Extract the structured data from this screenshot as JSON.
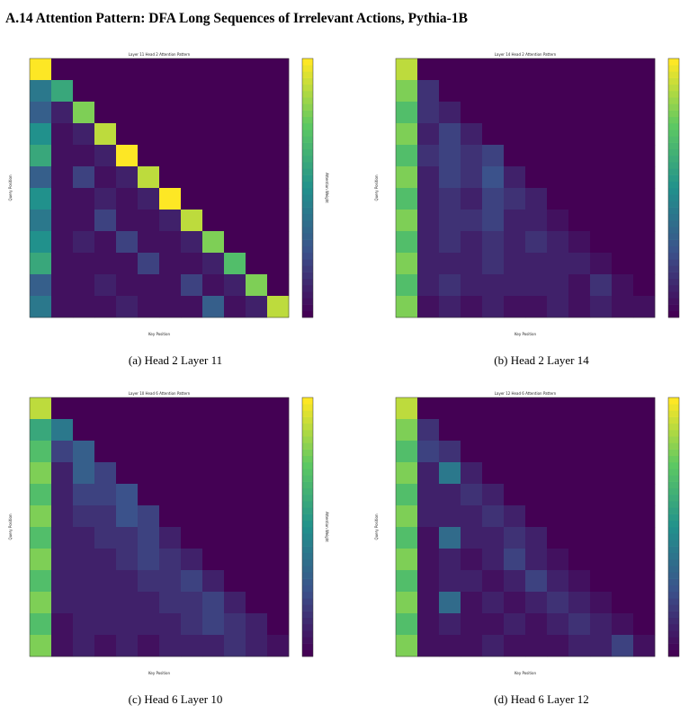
{
  "title": "A.14   Attention Pattern: DFA Long Sequences of Irrelevant Actions, Pythia-1B",
  "chart_data": [
    {
      "type": "heatmap",
      "title": "Layer 11 Head 2 Attention Pattern",
      "xlabel": "Key Position",
      "ylabel": "Query Position",
      "colorbar_label": "Attention Weight",
      "caption": "(a) Head 2 Layer 11",
      "zlim": [
        0,
        1
      ],
      "values": [
        [
          1,
          0,
          0,
          0,
          0,
          0,
          0,
          0,
          0,
          0,
          0,
          0
        ],
        [
          0.4,
          0.6,
          0,
          0,
          0,
          0,
          0,
          0,
          0,
          0,
          0,
          0
        ],
        [
          0.3,
          0.1,
          0.8,
          0,
          0,
          0,
          0,
          0,
          0,
          0,
          0,
          0
        ],
        [
          0.5,
          0.05,
          0.1,
          0.9,
          0,
          0,
          0,
          0,
          0,
          0,
          0,
          0
        ],
        [
          0.6,
          0.05,
          0.05,
          0.1,
          1,
          0,
          0,
          0,
          0,
          0,
          0,
          0
        ],
        [
          0.3,
          0.05,
          0.2,
          0.05,
          0.1,
          0.9,
          0,
          0,
          0,
          0,
          0,
          0
        ],
        [
          0.5,
          0.05,
          0.05,
          0.1,
          0.05,
          0.1,
          1,
          0,
          0,
          0,
          0,
          0
        ],
        [
          0.4,
          0.05,
          0.05,
          0.2,
          0.05,
          0.05,
          0.1,
          0.9,
          0,
          0,
          0,
          0
        ],
        [
          0.5,
          0.05,
          0.1,
          0.05,
          0.2,
          0.05,
          0.05,
          0.1,
          0.8,
          0,
          0,
          0
        ],
        [
          0.6,
          0.05,
          0.05,
          0.05,
          0.05,
          0.2,
          0.05,
          0.05,
          0.1,
          0.7,
          0,
          0
        ],
        [
          0.3,
          0.05,
          0.05,
          0.1,
          0.05,
          0.05,
          0.05,
          0.2,
          0.05,
          0.1,
          0.8,
          0
        ],
        [
          0.4,
          0.05,
          0.05,
          0.05,
          0.1,
          0.05,
          0.05,
          0.05,
          0.3,
          0.05,
          0.1,
          0.9
        ]
      ]
    },
    {
      "type": "heatmap",
      "title": "Layer 14 Head 2 Attention Pattern",
      "xlabel": "Key Position",
      "ylabel": "Query Position",
      "colorbar_label": "Attention Weight",
      "caption": "(b) Head 2 Layer 14",
      "zlim": [
        0,
        1
      ],
      "values": [
        [
          0.9,
          0,
          0,
          0,
          0,
          0,
          0,
          0,
          0,
          0,
          0,
          0
        ],
        [
          0.8,
          0.15,
          0,
          0,
          0,
          0,
          0,
          0,
          0,
          0,
          0,
          0
        ],
        [
          0.7,
          0.15,
          0.1,
          0,
          0,
          0,
          0,
          0,
          0,
          0,
          0,
          0
        ],
        [
          0.8,
          0.1,
          0.2,
          0.1,
          0,
          0,
          0,
          0,
          0,
          0,
          0,
          0
        ],
        [
          0.7,
          0.15,
          0.2,
          0.15,
          0.2,
          0,
          0,
          0,
          0,
          0,
          0,
          0
        ],
        [
          0.8,
          0.1,
          0.2,
          0.15,
          0.25,
          0.1,
          0,
          0,
          0,
          0,
          0,
          0
        ],
        [
          0.7,
          0.1,
          0.15,
          0.1,
          0.2,
          0.15,
          0.1,
          0,
          0,
          0,
          0,
          0
        ],
        [
          0.8,
          0.1,
          0.15,
          0.15,
          0.2,
          0.1,
          0.1,
          0.05,
          0,
          0,
          0,
          0
        ],
        [
          0.7,
          0.1,
          0.15,
          0.1,
          0.15,
          0.1,
          0.15,
          0.1,
          0.05,
          0,
          0,
          0
        ],
        [
          0.8,
          0.1,
          0.1,
          0.1,
          0.15,
          0.1,
          0.1,
          0.1,
          0.1,
          0.05,
          0,
          0
        ],
        [
          0.7,
          0.1,
          0.15,
          0.1,
          0.1,
          0.1,
          0.1,
          0.1,
          0.05,
          0.15,
          0.05,
          0
        ],
        [
          0.8,
          0.05,
          0.1,
          0.05,
          0.1,
          0.05,
          0.05,
          0.1,
          0.05,
          0.1,
          0.05,
          0.05
        ]
      ]
    },
    {
      "type": "heatmap",
      "title": "Layer 10 Head 6 Attention Pattern",
      "xlabel": "Key Position",
      "ylabel": "Query Position",
      "colorbar_label": "Attention Weight",
      "caption": "(c) Head 6 Layer 10",
      "zlim": [
        0,
        1
      ],
      "values": [
        [
          0.9,
          0,
          0,
          0,
          0,
          0,
          0,
          0,
          0,
          0,
          0,
          0
        ],
        [
          0.6,
          0.4,
          0,
          0,
          0,
          0,
          0,
          0,
          0,
          0,
          0,
          0
        ],
        [
          0.7,
          0.2,
          0.3,
          0,
          0,
          0,
          0,
          0,
          0,
          0,
          0,
          0
        ],
        [
          0.8,
          0.1,
          0.3,
          0.2,
          0,
          0,
          0,
          0,
          0,
          0,
          0,
          0
        ],
        [
          0.7,
          0.1,
          0.2,
          0.2,
          0.25,
          0,
          0,
          0,
          0,
          0,
          0,
          0
        ],
        [
          0.8,
          0.1,
          0.15,
          0.15,
          0.25,
          0.2,
          0,
          0,
          0,
          0,
          0,
          0
        ],
        [
          0.7,
          0.1,
          0.1,
          0.15,
          0.15,
          0.2,
          0.1,
          0,
          0,
          0,
          0,
          0
        ],
        [
          0.8,
          0.1,
          0.1,
          0.1,
          0.15,
          0.2,
          0.15,
          0.1,
          0,
          0,
          0,
          0
        ],
        [
          0.7,
          0.1,
          0.1,
          0.1,
          0.1,
          0.15,
          0.15,
          0.2,
          0.1,
          0,
          0,
          0
        ],
        [
          0.8,
          0.1,
          0.1,
          0.1,
          0.1,
          0.1,
          0.15,
          0.15,
          0.2,
          0.1,
          0,
          0
        ],
        [
          0.7,
          0.05,
          0.1,
          0.1,
          0.1,
          0.1,
          0.1,
          0.15,
          0.2,
          0.15,
          0.1,
          0
        ],
        [
          0.8,
          0.05,
          0.1,
          0.05,
          0.1,
          0.05,
          0.1,
          0.1,
          0.1,
          0.15,
          0.1,
          0.05
        ]
      ]
    },
    {
      "type": "heatmap",
      "title": "Layer 12 Head 6 Attention Pattern",
      "xlabel": "Key Position",
      "ylabel": "Query Position",
      "colorbar_label": "Attention Weight",
      "caption": "(d) Head 6 Layer 12",
      "zlim": [
        0,
        1
      ],
      "values": [
        [
          0.9,
          0,
          0,
          0,
          0,
          0,
          0,
          0,
          0,
          0,
          0,
          0
        ],
        [
          0.8,
          0.15,
          0,
          0,
          0,
          0,
          0,
          0,
          0,
          0,
          0,
          0
        ],
        [
          0.7,
          0.2,
          0.15,
          0,
          0,
          0,
          0,
          0,
          0,
          0,
          0,
          0
        ],
        [
          0.8,
          0.1,
          0.4,
          0.1,
          0,
          0,
          0,
          0,
          0,
          0,
          0,
          0
        ],
        [
          0.7,
          0.1,
          0.1,
          0.15,
          0.1,
          0,
          0,
          0,
          0,
          0,
          0,
          0
        ],
        [
          0.8,
          0.1,
          0.1,
          0.1,
          0.15,
          0.1,
          0,
          0,
          0,
          0,
          0,
          0
        ],
        [
          0.7,
          0.05,
          0.35,
          0.1,
          0.1,
          0.15,
          0.1,
          0,
          0,
          0,
          0,
          0
        ],
        [
          0.8,
          0.05,
          0.1,
          0.05,
          0.1,
          0.2,
          0.1,
          0.05,
          0,
          0,
          0,
          0
        ],
        [
          0.7,
          0.05,
          0.1,
          0.1,
          0.05,
          0.1,
          0.2,
          0.1,
          0.05,
          0,
          0,
          0
        ],
        [
          0.8,
          0.05,
          0.35,
          0.05,
          0.1,
          0.05,
          0.1,
          0.15,
          0.1,
          0.05,
          0,
          0
        ],
        [
          0.7,
          0.05,
          0.1,
          0.05,
          0.05,
          0.1,
          0.05,
          0.1,
          0.15,
          0.1,
          0.05,
          0
        ],
        [
          0.8,
          0.05,
          0.05,
          0.05,
          0.1,
          0.05,
          0.05,
          0.05,
          0.1,
          0.1,
          0.2,
          0.05
        ]
      ]
    }
  ]
}
